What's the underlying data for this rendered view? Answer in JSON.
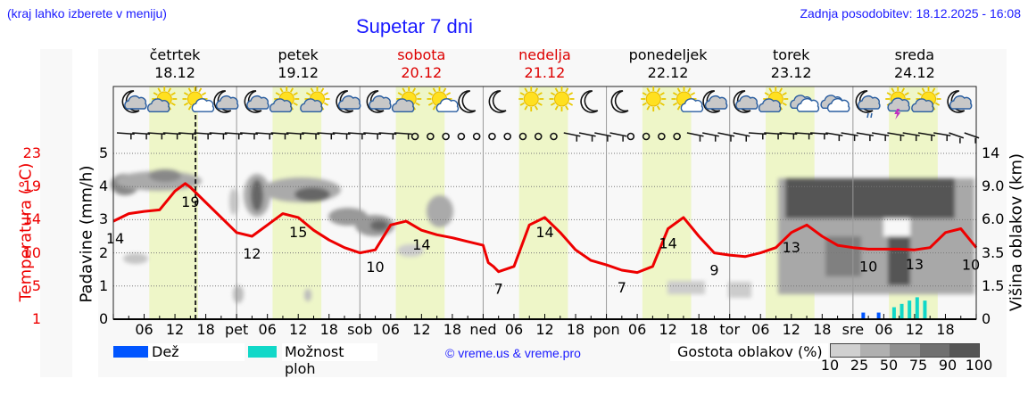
{
  "header": {
    "menu_hint": "(kraj lahko izberete v meniju)",
    "title": "Supetar 7 dni",
    "last_update": "Zadnja posodobitev: 18.12.2025 - 16:08"
  },
  "days": [
    {
      "name": "četrtek",
      "date": "18.12",
      "weekend": false
    },
    {
      "name": "petek",
      "date": "19.12",
      "weekend": false
    },
    {
      "name": "sobota",
      "date": "20.12",
      "weekend": true
    },
    {
      "name": "nedelja",
      "date": "21.12",
      "weekend": true
    },
    {
      "name": "ponedeljek",
      "date": "22.12",
      "weekend": false
    },
    {
      "name": "torek",
      "date": "23.12",
      "weekend": false
    },
    {
      "name": "sreda",
      "date": "24.12",
      "weekend": false
    }
  ],
  "axes": {
    "left_temp_title": "Temperatura (°C)",
    "left_temp_ticks": [
      "23",
      "19",
      "14",
      "10",
      "5",
      "1"
    ],
    "left_rain_title": "Padavine (mm/h)",
    "left_rain_ticks": [
      "5",
      "4",
      "3",
      "2",
      "1",
      "0"
    ],
    "right_title": "Višina oblakov (km)",
    "right_ticks": [
      "14",
      "9.0",
      "6.0",
      "3.5",
      "1.5",
      "0"
    ],
    "x_ticks": [
      "06",
      "12",
      "18",
      "pet",
      "06",
      "12",
      "18",
      "sob",
      "06",
      "12",
      "18",
      "ned",
      "06",
      "12",
      "18",
      "pon",
      "06",
      "12",
      "18",
      "tor",
      "06",
      "12",
      "18",
      "sre",
      "06",
      "12",
      "18"
    ]
  },
  "legend": {
    "rain_label": "Dež",
    "rain_color": "#0055ff",
    "showers_label": "Možnost ploh",
    "showers_color": "#11d8c8",
    "copyright": "© vreme.us & vreme.pro",
    "cloud_density_label": "Gostota oblakov (%)",
    "cloud_density_ticks": [
      "10",
      "25",
      "50",
      "75",
      "90",
      "100"
    ],
    "cloud_density_colors": [
      "#d0d0d0",
      "#b0b0b0",
      "#909090",
      "#707070",
      "#555555"
    ]
  },
  "icons": [
    "moon-cloud",
    "sun-cloud",
    "sun-small-cloud",
    "moon-cloud",
    "moon-cloud",
    "sun-cloud",
    "sun-cloud",
    "moon-cloud",
    "moon-cloud",
    "sun-cloud",
    "sun-small-cloud",
    "moon",
    "moon",
    "sun",
    "sun",
    "moon",
    "moon",
    "sun",
    "sun-small-cloud",
    "moon-cloud",
    "moon-cloud",
    "sun-cloud",
    "clouds",
    "clouds",
    "moon-cloud-rain",
    "sun-thunder",
    "sun-cloud",
    "moon-cloud"
  ],
  "chart_data": {
    "type": "line",
    "title": "Supetar 7 dni",
    "xlabel": "",
    "ylabel": "Temperatura (°C) / Padavine (mm/h)",
    "y2label": "Višina oblakov (km)",
    "ylim_temp": [
      1,
      23
    ],
    "ylim_rain": [
      0,
      5
    ],
    "grid": true,
    "series": [
      {
        "name": "Temperatura (°C)",
        "color": "#ee0000",
        "x_hours": [
          0,
          3,
          6,
          9,
          12,
          14,
          15,
          18,
          21,
          24,
          27,
          30,
          33,
          36,
          39,
          42,
          45,
          48,
          51,
          54,
          57,
          60,
          63,
          66,
          69,
          72,
          73,
          74,
          75,
          78,
          81,
          84,
          87,
          90,
          93,
          96,
          99,
          102,
          105,
          108,
          111,
          114,
          117,
          120,
          123,
          126,
          129,
          132,
          135,
          138,
          141,
          144,
          147,
          150,
          153,
          156,
          159,
          162,
          165,
          168
        ],
        "values": [
          14,
          15,
          15.3,
          15.5,
          18,
          19,
          18.5,
          16.5,
          14.5,
          12.5,
          12,
          13.5,
          15,
          14.5,
          12.8,
          11.5,
          10.5,
          9.8,
          10.2,
          13.5,
          14,
          12.8,
          12.2,
          11.8,
          11.3,
          10.8,
          8.5,
          8,
          7.3,
          8,
          13.5,
          14.5,
          12.5,
          10.2,
          8.8,
          8.2,
          7.5,
          7.2,
          8,
          13,
          14.5,
          12,
          9.8,
          9.5,
          9.3,
          9.8,
          10.5,
          12.5,
          13.5,
          12,
          10.8,
          10.5,
          10.3,
          10.3,
          10.3,
          10.2,
          10.5,
          12.5,
          13,
          10.5
        ],
        "labels": [
          {
            "x_hour": 0,
            "value": 14
          },
          {
            "x_hour": 15,
            "value": 19
          },
          {
            "x_hour": 27,
            "value": 12
          },
          {
            "x_hour": 36,
            "value": 15
          },
          {
            "x_hour": 51,
            "value": 10
          },
          {
            "x_hour": 60,
            "value": 14
          },
          {
            "x_hour": 75,
            "value": 7
          },
          {
            "x_hour": 84,
            "value": 14
          },
          {
            "x_hour": 99,
            "value": 7
          },
          {
            "x_hour": 108,
            "value": 14
          },
          {
            "x_hour": 117,
            "value": 9
          },
          {
            "x_hour": 132,
            "value": 13
          },
          {
            "x_hour": 147,
            "value": 10
          },
          {
            "x_hour": 156,
            "value": 13
          },
          {
            "x_hour": 168,
            "value": 10
          }
        ]
      },
      {
        "name": "Dež",
        "type": "bar",
        "color": "#0055ff",
        "x_hours": [
          146,
          149
        ],
        "values": [
          0.2,
          0.2
        ]
      },
      {
        "name": "Možnost ploh",
        "type": "bar",
        "color": "#11d8c8",
        "x_hours": [
          152,
          153.5,
          155,
          156.5,
          158
        ],
        "values": [
          0.2,
          0.3,
          0.4,
          0.5,
          0.4
        ]
      }
    ],
    "now_marker_hour": 16,
    "daylight_bands_hours": [
      [
        7,
        16.5
      ],
      [
        31,
        40.5
      ],
      [
        55,
        64.5
      ],
      [
        79,
        88.5
      ],
      [
        103,
        112.5
      ],
      [
        127,
        136.5
      ],
      [
        151,
        160.5
      ]
    ],
    "legend_position": "bottom"
  }
}
